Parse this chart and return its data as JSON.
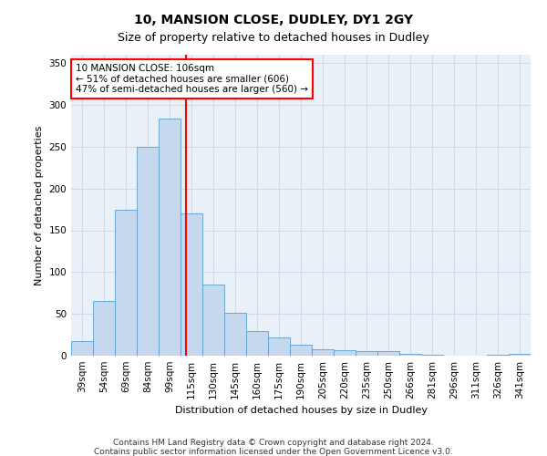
{
  "title1": "10, MANSION CLOSE, DUDLEY, DY1 2GY",
  "title2": "Size of property relative to detached houses in Dudley",
  "xlabel": "Distribution of detached houses by size in Dudley",
  "ylabel": "Number of detached properties",
  "categories": [
    "39sqm",
    "54sqm",
    "69sqm",
    "84sqm",
    "99sqm",
    "115sqm",
    "130sqm",
    "145sqm",
    "160sqm",
    "175sqm",
    "190sqm",
    "205sqm",
    "220sqm",
    "235sqm",
    "250sqm",
    "266sqm",
    "281sqm",
    "296sqm",
    "311sqm",
    "326sqm",
    "341sqm"
  ],
  "values": [
    18,
    66,
    175,
    250,
    284,
    170,
    85,
    51,
    30,
    22,
    13,
    8,
    7,
    5,
    5,
    2,
    1,
    0,
    0,
    1,
    2
  ],
  "bar_color": "#c5d8ed",
  "bar_edge_color": "#5a9ecf",
  "red_line_x": 4.73,
  "annotation_text": "10 MANSION CLOSE: 106sqm\n← 51% of detached houses are smaller (606)\n47% of semi-detached houses are larger (560) →",
  "annotation_box_color": "white",
  "annotation_box_edge_color": "red",
  "footnote1": "Contains HM Land Registry data © Crown copyright and database right 2024.",
  "footnote2": "Contains public sector information licensed under the Open Government Licence v3.0.",
  "ylim": [
    0,
    360
  ],
  "yticks": [
    0,
    50,
    100,
    150,
    200,
    250,
    300,
    350
  ],
  "grid_color": "#d0d8e8",
  "bg_color": "#eaf0f8",
  "bar_width": 1.0,
  "title1_fontsize": 10,
  "title2_fontsize": 9,
  "xlabel_fontsize": 8,
  "ylabel_fontsize": 8,
  "tick_fontsize": 7.5,
  "footnote_fontsize": 6.5
}
